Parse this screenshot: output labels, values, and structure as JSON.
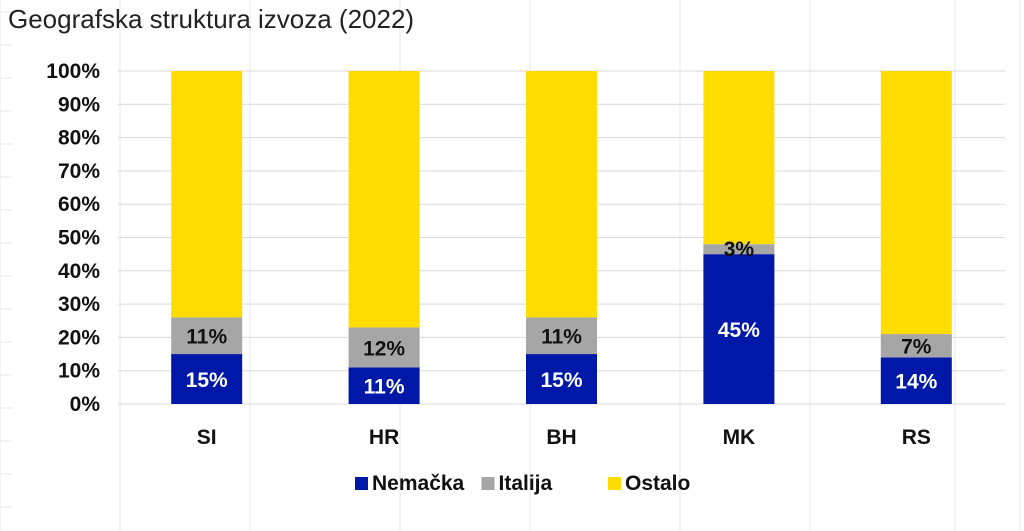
{
  "chart_data": {
    "type": "bar",
    "stacked": true,
    "title": "Geografska struktura izvoza (2022)",
    "xlabel": "",
    "ylabel": "",
    "categories": [
      "SI",
      "HR",
      "BH",
      "MK",
      "RS"
    ],
    "series": [
      {
        "name": "Nemačka",
        "color": "#0018A8",
        "label_color": "#ffffff",
        "values": [
          15,
          11,
          15,
          45,
          14
        ],
        "labels": [
          "15%",
          "11%",
          "15%",
          "45%",
          "14%"
        ]
      },
      {
        "name": "Italija",
        "color": "#A6A6A6",
        "label_color": "#111111",
        "values": [
          11,
          12,
          11,
          3,
          7
        ],
        "labels": [
          "11%",
          "12%",
          "11%",
          "3%",
          "7%"
        ]
      },
      {
        "name": "Ostalo",
        "color": "#FFDD00",
        "label_color": "#111111",
        "values": [
          74,
          77,
          74,
          52,
          79
        ],
        "labels": [
          "",
          "",
          "",
          "",
          ""
        ]
      }
    ],
    "ylim": [
      0,
      100
    ],
    "yticks": [
      "0%",
      "10%",
      "20%",
      "30%",
      "40%",
      "50%",
      "60%",
      "70%",
      "80%",
      "90%",
      "100%"
    ],
    "grid": true,
    "legend_position": "bottom"
  }
}
